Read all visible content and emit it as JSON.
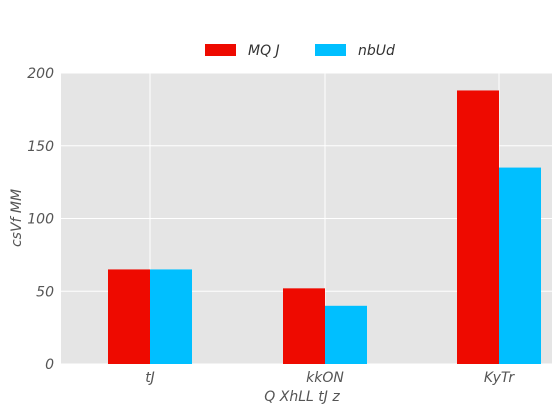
{
  "chart_data": {
    "type": "bar",
    "categories": [
      "tJ",
      "kkON",
      "KyTr"
    ],
    "series": [
      {
        "name": "MQ J",
        "values": [
          65,
          52,
          188
        ],
        "color": "#ee0a00"
      },
      {
        "name": "nbUd",
        "values": [
          65,
          40,
          135
        ],
        "color": "#00bfff"
      }
    ],
    "xlabel": "Q XhLL tJ z",
    "ylabel": "csVf MM",
    "ylim": [
      0,
      200
    ],
    "yticks": [
      "0",
      "50",
      "100",
      "150",
      "200"
    ],
    "grid": true,
    "legend_position": "top-center",
    "background_color": "#e5e5e5",
    "grid_color": "#ffffff"
  }
}
